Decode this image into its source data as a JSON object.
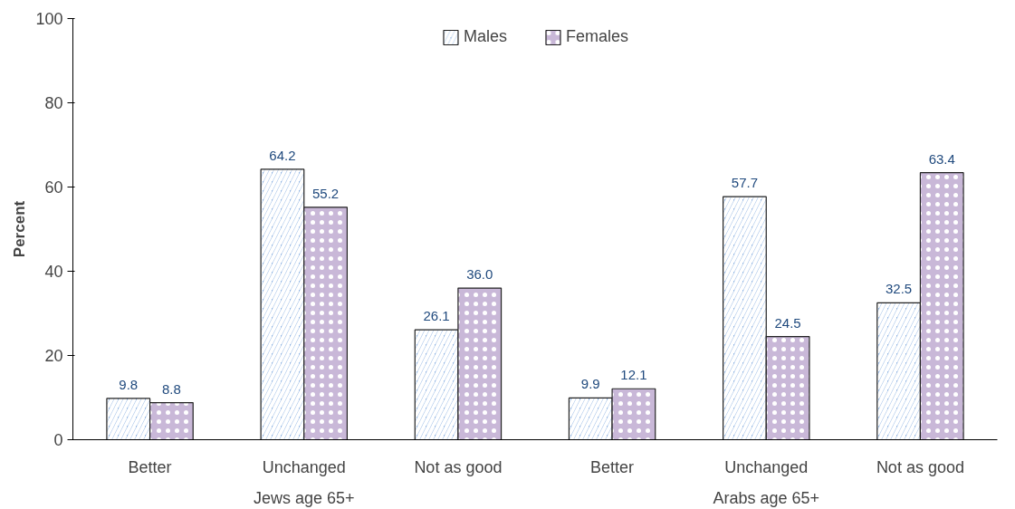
{
  "chart_data": {
    "type": "bar",
    "ylabel": "Percent",
    "categories": [
      "Better",
      "Unchanged",
      "Not as good",
      "Better",
      "Unchanged",
      "Not as good"
    ],
    "series": [
      {
        "name": "Males",
        "color": "#8fb4e3",
        "values": [
          9.8,
          64.2,
          26.1,
          9.9,
          57.7,
          32.5
        ],
        "value_labels": [
          "9.8",
          "64.2",
          "26.1",
          "9.9",
          "57.7",
          "32.5"
        ]
      },
      {
        "name": "Females",
        "color": "#c9b8d8",
        "values": [
          8.8,
          55.2,
          36.0,
          12.1,
          24.5,
          63.4
        ],
        "value_labels": [
          "8.8",
          "55.2",
          "36.0",
          "12.1",
          "24.5",
          "63.4"
        ]
      }
    ],
    "annotations": [
      "Jews age 65+",
      "Arabs age 65+"
    ],
    "ylim": [
      0,
      100
    ],
    "yticks": [
      0,
      20,
      40,
      60,
      80,
      100
    ],
    "grid": false,
    "legend": "top"
  }
}
